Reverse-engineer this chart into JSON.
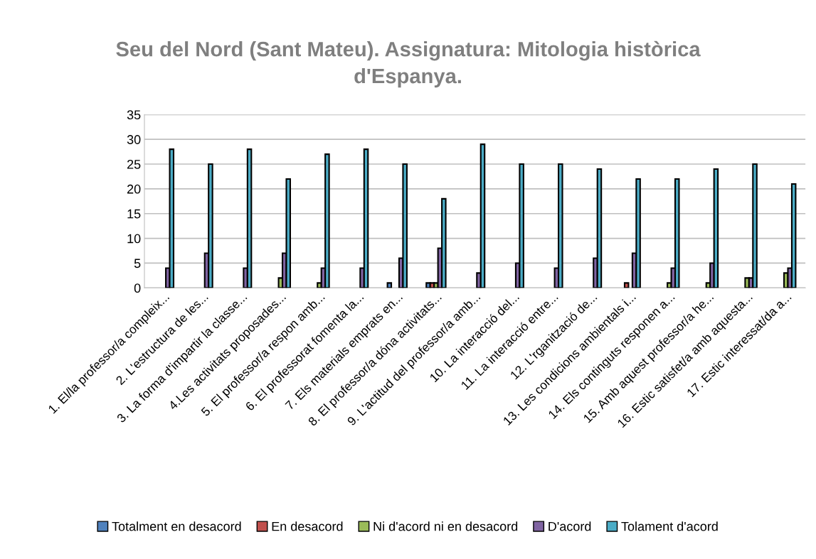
{
  "chart_data": {
    "type": "bar",
    "title": "Seu del Nord (Sant Mateu). Assignatura: Mitologia històrica d'Espanya.",
    "categories": [
      "1. El/la professor/a compleix...",
      "2. L'estructura de les...",
      "3. La forma d'impartir la classe...",
      "4.Les activitats proposades...",
      "5. El professor/a respon amb...",
      "6. El professorat fomenta la...",
      "7. Els materials emprats en...",
      "8. El professor/a dóna activitats...",
      "9. L'actitud del professor/a amb...",
      "10. La interacció del...",
      "11. La interacció entre...",
      "12. L'rganització de...",
      "13. Les condicions ambientals i...",
      "14. Els continguts responen a...",
      "15. Amb aquest professor/a he...",
      "16. Estic satisfet/a amb aquesta...",
      "17. Estic interessat/da a..."
    ],
    "series": [
      {
        "name": "Totalment en desacord",
        "color": "#4f81bd",
        "values": [
          null,
          null,
          null,
          null,
          null,
          null,
          1,
          1,
          null,
          null,
          null,
          null,
          null,
          null,
          null,
          null,
          null
        ]
      },
      {
        "name": "En desacord",
        "color": "#c0504d",
        "values": [
          null,
          null,
          null,
          null,
          null,
          null,
          null,
          1,
          null,
          null,
          null,
          null,
          1,
          null,
          null,
          null,
          null
        ]
      },
      {
        "name": "Ni d'acord ni en desacord",
        "color": "#9bbb59",
        "values": [
          null,
          null,
          null,
          2,
          1,
          null,
          null,
          1,
          null,
          null,
          null,
          null,
          null,
          1,
          1,
          2,
          3
        ]
      },
      {
        "name": "D'acord",
        "color": "#8064a2",
        "values": [
          4,
          7,
          4,
          7,
          4,
          4,
          6,
          8,
          3,
          5,
          4,
          6,
          7,
          4,
          5,
          2,
          4
        ]
      },
      {
        "name": "Tolament d'acord",
        "color": "#4bacc6",
        "values": [
          28,
          25,
          28,
          22,
          27,
          28,
          25,
          18,
          29,
          25,
          25,
          24,
          22,
          22,
          24,
          25,
          21
        ]
      }
    ],
    "ylim": [
      0,
      35
    ],
    "yticks": [
      0,
      5,
      10,
      15,
      20,
      25,
      30,
      35
    ],
    "grid": "y",
    "legend": "bottom"
  }
}
